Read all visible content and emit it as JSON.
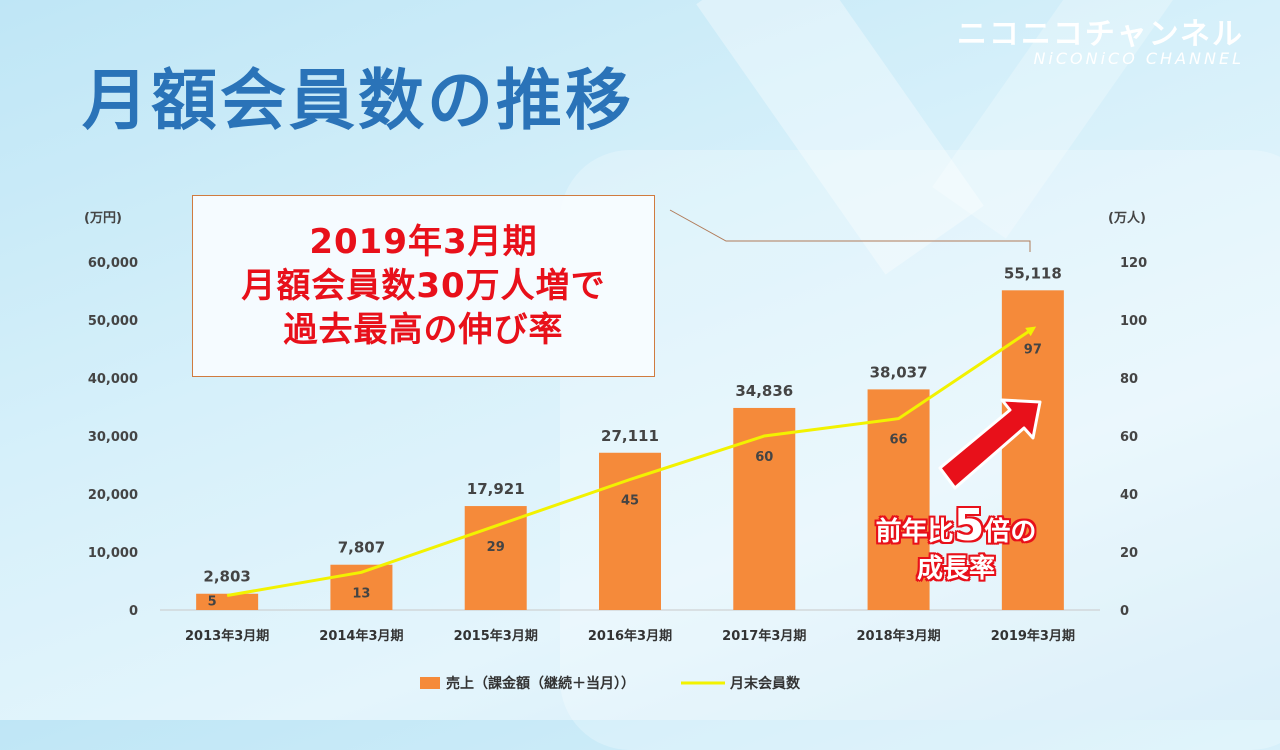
{
  "title": "月額会員数の推移",
  "logo": {
    "main": "ニコニコチャンネル",
    "sub": "NiCONiCO CHANNEL"
  },
  "callout": [
    "2019年3月期",
    "月額会員数30万人増で",
    "過去最高の伸び率"
  ],
  "growth": {
    "prefix": "前年比",
    "number": "5",
    "suffix": "倍の",
    "line2": "成長率"
  },
  "chart_data": {
    "type": "bar",
    "categories": [
      "2013年3月期",
      "2014年3月期",
      "2015年3月期",
      "2016年3月期",
      "2017年3月期",
      "2018年3月期",
      "2019年3月期"
    ],
    "series": [
      {
        "name": "売上（課金額（継続＋当月））",
        "type": "bar",
        "axis": "left",
        "color": "#f58a3a",
        "values": [
          2803,
          7807,
          17921,
          27111,
          34836,
          38037,
          55118
        ],
        "labels": [
          "2,803",
          "7,807",
          "17,921",
          "27,111",
          "34,836",
          "38,037",
          "55,118"
        ]
      },
      {
        "name": "月末会員数",
        "type": "line",
        "axis": "right",
        "color": "#f2f200",
        "values": [
          5,
          13,
          29,
          45,
          60,
          66,
          97
        ],
        "labels": [
          "5",
          "13",
          "29",
          "45",
          "60",
          "66",
          "97"
        ]
      }
    ],
    "y_left": {
      "unit": "(万円)",
      "min": 0,
      "max": 60000,
      "ticks": [
        "0",
        "10,000",
        "20,000",
        "30,000",
        "40,000",
        "50,000",
        "60,000"
      ]
    },
    "y_right": {
      "unit": "(万人)",
      "min": 0,
      "max": 120,
      "ticks": [
        "0",
        "20",
        "40",
        "60",
        "80",
        "100",
        "120"
      ]
    },
    "legend_position": "bottom",
    "grid": false
  }
}
